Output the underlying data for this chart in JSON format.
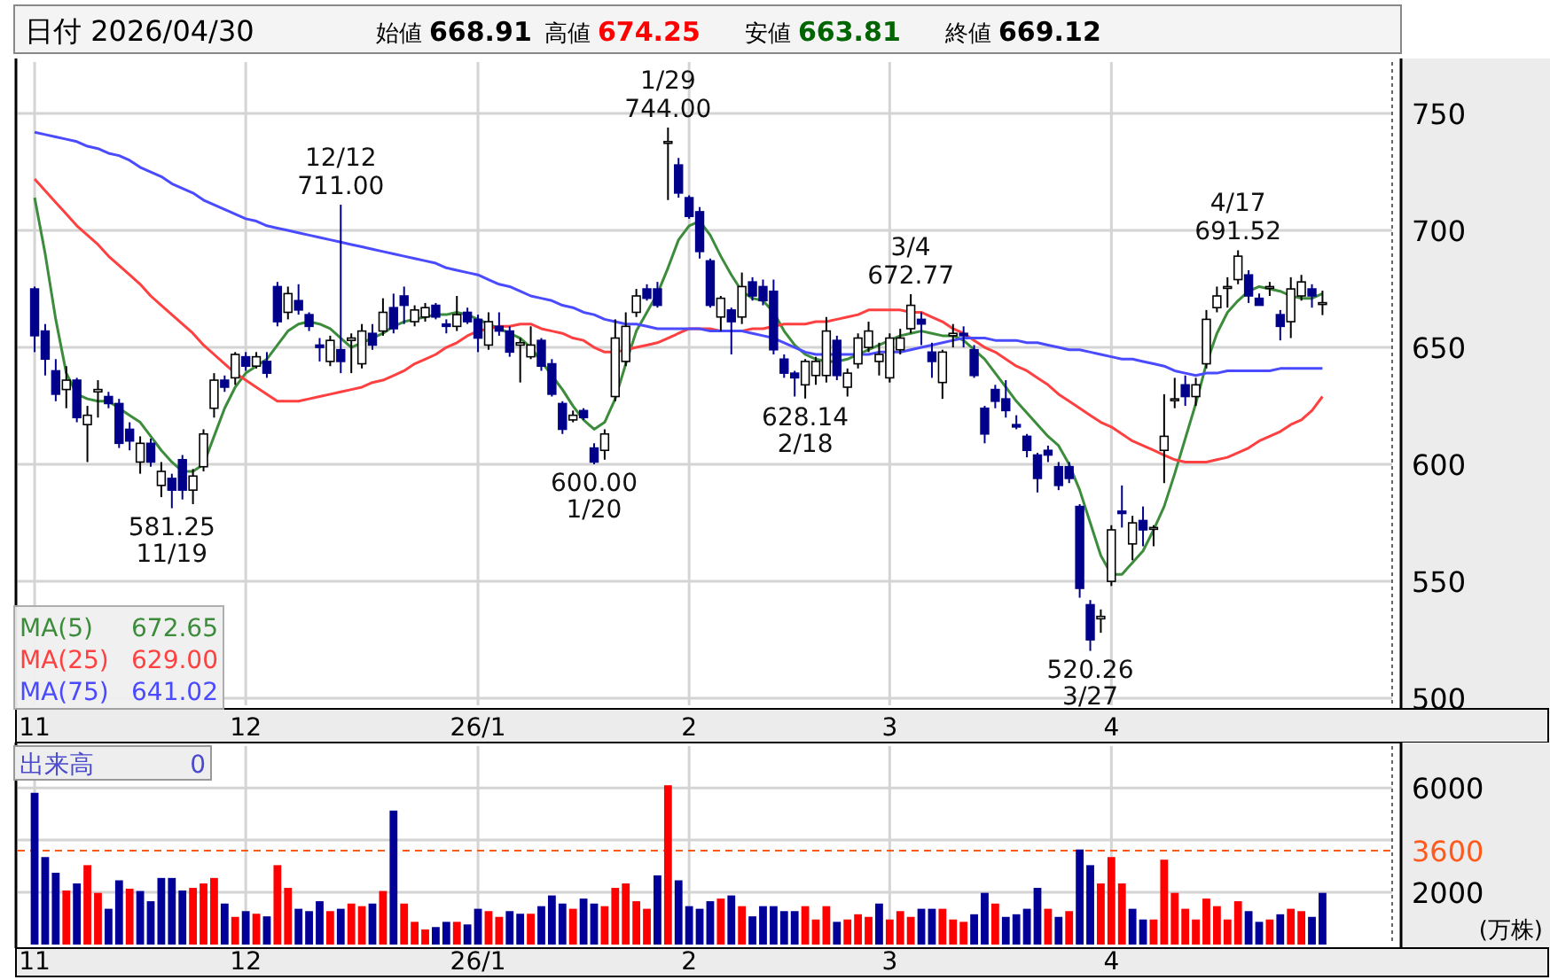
{
  "chart_data": [
    {
      "type": "candlestick",
      "title": "日付 2026/04/30",
      "colors": [
        "#00008b",
        "#00008b",
        "#00008b",
        "#ffffff",
        "#00008b",
        "#ffffff",
        "#ffffff",
        "#00008b",
        "#00008b",
        "#00008b",
        "#ffffff",
        "#00008b",
        "#ffffff",
        "#00008b",
        "#00008b",
        "#ffffff",
        "#ffffff",
        "#ffffff",
        "#00008b",
        "#ffffff",
        "#00008b",
        "#ffffff",
        "#00008b",
        "#00008b",
        "#ffffff",
        "#00008b",
        "#00008b",
        "#00008b",
        "#ffffff",
        "#00008b",
        "#ffffff",
        "#ffffff",
        "#00008b",
        "#ffffff",
        "#00008b",
        "#00008b",
        "#ffffff",
        "#ffffff",
        "#00008b",
        "#00008b",
        "#ffffff",
        "#00008b",
        "#00008b",
        "#ffffff",
        "#00008b",
        "#00008b",
        "#ffffff",
        "#ffffff",
        "#00008b",
        "#00008b",
        "#00008b",
        "#ffffff",
        "#00008b",
        "#00008b",
        "#ffffff",
        "#ffffff",
        "#ffffff",
        "#ffffff",
        "#00008b",
        "#00008b",
        "#ffffff",
        "#00008b",
        "#00008b",
        "#00008b",
        "#00008b",
        "#ffffff",
        "#00008b",
        "#ffffff",
        "#00008b",
        "#00008b",
        "#00008b",
        "#00008b",
        "#00008b",
        "#ffffff",
        "#ffffff",
        "#ffffff",
        "#00008b",
        "#ffffff",
        "#ffffff",
        "#ffffff",
        "#ffffff",
        "#ffffff",
        "#ffffff",
        "#ffffff",
        "#00008b",
        "#00008b",
        "#ffffff",
        "#ffffff",
        "#00008b",
        "#00008b",
        "#00008b",
        "#00008b",
        "#00008b",
        "#00008b",
        "#00008b",
        "#00008b",
        "#00008b",
        "#00008b",
        "#00008b",
        "#00008b",
        "#00008b",
        "#ffffff",
        "#ffffff",
        "#00008b",
        "#ffffff",
        "#00008b",
        "#ffffff",
        "#ffffff",
        "#ffffff",
        "#00008b",
        "#ffffff",
        "#ffffff",
        "#ffffff",
        "#ffffff",
        "#ffffff",
        "#00008b",
        "#00008b",
        "#ffffff",
        "#00008b",
        "#ffffff",
        "#ffffff",
        "#00008b",
        "#ffffff"
      ],
      "grid": true,
      "legend": "bottom left",
      "ylim": [
        497,
        772
      ],
      "yticks": [
        500,
        550,
        600,
        650,
        700,
        750
      ],
      "categories": [
        "11",
        null,
        null,
        null,
        null,
        null,
        null,
        null,
        null,
        null,
        null,
        null,
        null,
        null,
        null,
        null,
        null,
        null,
        null,
        null,
        "12",
        null,
        null,
        null,
        null,
        null,
        null,
        null,
        null,
        null,
        null,
        null,
        null,
        null,
        null,
        null,
        null,
        null,
        null,
        null,
        null,
        null,
        "26/1",
        null,
        null,
        null,
        null,
        null,
        null,
        null,
        null,
        null,
        null,
        null,
        null,
        null,
        null,
        null,
        null,
        null,
        null,
        null,
        "2",
        null,
        null,
        null,
        null,
        null,
        null,
        null,
        null,
        null,
        null,
        null,
        null,
        null,
        null,
        null,
        null,
        null,
        null,
        "3",
        null,
        null,
        null,
        null,
        null,
        null,
        null,
        null,
        null,
        null,
        null,
        null,
        null,
        null,
        null,
        null,
        null,
        null,
        null,
        null,
        "4",
        null,
        null,
        null,
        null,
        null,
        null,
        null,
        null,
        null,
        null,
        null,
        null,
        null,
        null,
        null,
        null,
        null,
        null,
        null,
        null
      ],
      "annotations": [
        "始値 668.91",
        "高値 674.25",
        "安値 663.81",
        "終値 669.12",
        "672.65",
        "629.00",
        "641.02",
        {
          "text": "581.25\n11/19",
          "y": 581.25
        },
        {
          "text": "12/12\n711.00",
          "y": 711
        },
        {
          "text": "600.00\n1/20",
          "y": 600
        },
        {
          "text": "1/29\n744.00",
          "y": 744
        },
        {
          "text": "628.14\n2/18",
          "y": 628.14
        },
        {
          "text": "3/4\n672.77",
          "y": 672.77
        },
        {
          "text": "520.26\n3/27",
          "y": 520.26
        },
        {
          "text": "4/17\n691.52",
          "y": 691.52
        }
      ],
      "ohlc": [
        [
          675,
          676,
          648,
          655
        ],
        [
          657,
          660,
          638,
          645
        ],
        [
          640,
          645,
          627,
          630
        ],
        [
          632,
          642,
          624,
          636
        ],
        [
          636,
          637,
          618,
          620
        ],
        [
          617,
          625,
          601,
          621
        ],
        [
          631,
          636,
          620,
          632
        ],
        [
          629,
          631,
          624,
          626
        ],
        [
          626,
          628,
          607,
          609
        ],
        [
          615,
          618,
          606,
          610
        ],
        [
          601,
          612,
          596,
          609
        ],
        [
          609,
          611,
          599,
          601
        ],
        [
          591,
          601,
          586,
          597
        ],
        [
          594,
          596,
          581.25,
          589
        ],
        [
          602,
          604,
          585,
          589
        ],
        [
          589,
          598,
          583,
          595
        ],
        [
          599,
          615,
          597,
          613
        ],
        [
          624,
          639,
          620,
          636
        ],
        [
          636,
          638,
          631,
          633
        ],
        [
          637,
          648,
          634,
          647
        ],
        [
          646,
          648,
          640,
          642
        ],
        [
          642,
          648,
          641,
          646
        ],
        [
          644,
          648,
          637,
          639
        ],
        [
          676,
          678,
          659,
          661
        ],
        [
          665,
          676,
          662,
          673
        ],
        [
          670,
          677,
          664,
          666
        ],
        [
          664,
          665,
          657,
          659
        ],
        [
          651,
          654,
          644,
          650
        ],
        [
          644,
          655,
          642,
          653
        ],
        [
          649,
          711,
          639,
          644
        ],
        [
          653,
          656,
          639,
          654
        ],
        [
          643,
          660,
          641,
          657
        ],
        [
          656,
          660,
          649,
          651
        ],
        [
          657,
          671,
          655,
          665
        ],
        [
          667,
          673,
          656,
          658
        ],
        [
          672,
          676,
          660,
          668
        ],
        [
          661,
          668,
          659,
          666
        ],
        [
          663,
          669,
          661,
          667
        ],
        [
          668,
          669,
          662,
          663
        ],
        [
          660,
          662,
          656,
          659
        ],
        [
          659,
          672,
          657,
          664
        ],
        [
          665,
          667,
          660,
          661
        ],
        [
          662,
          664,
          648,
          654
        ],
        [
          651,
          665,
          649,
          661
        ],
        [
          659,
          665,
          655,
          657
        ],
        [
          657,
          659,
          646,
          648
        ],
        [
          651,
          654,
          635,
          652
        ],
        [
          646,
          659,
          645,
          651
        ],
        [
          653,
          654,
          640,
          642
        ],
        [
          643,
          645,
          629,
          630
        ],
        [
          626,
          627,
          613,
          615
        ],
        [
          619,
          623,
          618,
          621
        ],
        [
          623,
          624,
          619,
          620
        ],
        [
          607,
          609,
          600,
          601
        ],
        [
          606,
          615,
          602,
          613
        ],
        [
          629,
          662,
          627,
          654
        ],
        [
          644,
          665,
          642,
          659
        ],
        [
          665,
          675,
          663,
          672
        ],
        [
          675,
          677,
          670,
          671
        ],
        [
          675,
          678,
          667,
          668
        ],
        [
          738,
          744,
          713,
          738
        ],
        [
          728,
          731,
          714,
          716
        ],
        [
          714,
          715,
          705,
          706
        ],
        [
          708,
          710,
          688,
          691
        ],
        [
          687,
          688,
          667,
          668
        ],
        [
          663,
          672,
          657,
          671
        ],
        [
          666,
          667,
          647,
          661
        ],
        [
          663,
          682,
          660,
          676
        ],
        [
          678,
          680,
          670,
          672
        ],
        [
          676,
          679,
          668,
          670
        ],
        [
          674,
          679,
          647,
          649
        ],
        [
          645,
          647,
          637,
          639
        ],
        [
          639,
          640,
          629,
          637
        ],
        [
          634,
          645,
          628.14,
          644
        ],
        [
          638,
          646,
          634,
          644
        ],
        [
          638,
          663,
          635,
          657
        ],
        [
          653,
          655,
          636,
          638
        ],
        [
          633,
          641,
          629,
          639
        ],
        [
          643,
          656,
          641,
          654
        ],
        [
          650,
          661,
          648,
          657
        ],
        [
          644,
          652,
          638,
          647
        ],
        [
          637,
          656,
          635,
          654
        ],
        [
          649,
          658,
          647,
          654
        ],
        [
          658,
          672.77,
          656,
          668
        ],
        [
          662,
          665,
          651,
          660
        ],
        [
          648,
          652,
          637,
          644
        ],
        [
          635,
          649,
          628,
          648
        ],
        [
          655,
          660,
          650,
          656
        ],
        [
          656,
          659,
          650,
          655
        ],
        [
          649,
          651,
          637,
          638
        ],
        [
          624,
          625,
          609,
          613
        ],
        [
          632,
          634,
          624,
          627
        ],
        [
          628,
          636,
          620,
          623
        ],
        [
          617,
          621,
          615,
          616
        ],
        [
          612,
          613,
          603,
          606
        ],
        [
          604,
          605,
          588,
          594
        ],
        [
          606,
          608,
          601,
          604
        ],
        [
          599,
          601,
          589,
          591
        ],
        [
          599,
          601,
          592,
          594
        ],
        [
          582,
          583,
          543,
          547
        ],
        [
          540,
          542,
          520.26,
          525
        ],
        [
          534,
          538,
          528,
          535
        ],
        [
          550,
          574,
          548,
          572
        ],
        [
          580,
          591,
          573,
          579
        ],
        [
          566,
          578,
          559,
          575
        ],
        [
          576,
          582,
          565,
          572
        ],
        [
          573,
          574,
          565,
          573
        ],
        [
          606,
          630,
          592,
          612
        ],
        [
          628,
          637,
          624,
          628
        ],
        [
          634,
          638,
          625,
          629
        ],
        [
          629,
          637,
          625,
          634
        ],
        [
          643,
          666,
          641,
          662
        ],
        [
          667,
          676,
          665,
          672
        ],
        [
          676,
          680,
          667,
          676
        ],
        [
          679,
          691.52,
          677,
          689
        ],
        [
          681,
          683,
          669,
          672
        ],
        [
          671,
          673,
          668,
          668
        ],
        [
          676,
          678,
          672,
          676
        ],
        [
          664,
          666,
          653,
          659
        ],
        [
          661,
          680,
          654,
          675
        ],
        [
          672,
          681,
          670,
          678
        ],
        [
          675,
          677,
          667,
          672
        ],
        [
          668.91,
          674.25,
          663.81,
          669.12
        ]
      ],
      "series": [
        {
          "type": "line",
          "name": "MA(5)",
          "color": "#3c8c3c",
          "values": [
            714,
            690,
            662,
            639,
            630,
            628,
            627,
            627,
            624,
            621,
            618,
            612,
            606,
            601,
            597,
            597,
            600,
            612,
            624,
            633,
            639,
            642,
            645,
            651,
            657,
            660,
            661,
            660,
            658,
            654,
            650,
            652,
            654,
            656,
            659,
            661,
            662,
            663,
            664,
            664,
            665,
            664,
            662,
            660,
            658,
            656,
            654,
            650,
            644,
            638,
            632,
            625,
            619,
            615,
            618,
            628,
            643,
            657,
            665,
            673,
            684,
            696,
            702,
            704,
            698,
            689,
            681,
            674,
            671,
            670,
            665,
            657,
            651,
            647,
            645,
            644,
            644,
            645,
            647,
            649,
            651,
            653,
            655,
            656,
            657,
            656,
            655,
            655,
            653,
            649,
            645,
            639,
            633,
            627,
            622,
            617,
            612,
            608,
            600,
            589,
            575,
            561,
            553,
            553,
            558,
            563,
            572,
            582,
            596,
            611,
            626,
            643,
            656,
            665,
            670,
            674,
            676,
            675,
            674,
            672,
            671,
            671,
            673
          ]
        },
        {
          "type": "line",
          "name": "MA(25)",
          "color": "#ff4040",
          "values": [
            722,
            717,
            712,
            707,
            702,
            698,
            694,
            689,
            685,
            681,
            677,
            672,
            668,
            664,
            660,
            656,
            651,
            647,
            643,
            639,
            636,
            633,
            630,
            627,
            627,
            627,
            628,
            629,
            630,
            631,
            632,
            633,
            635,
            636,
            638,
            640,
            643,
            645,
            647,
            650,
            652,
            655,
            657,
            658,
            659,
            659,
            660,
            660,
            658,
            657,
            656,
            654,
            653,
            650,
            648,
            648,
            649,
            650,
            651,
            652,
            654,
            656,
            658,
            658,
            658,
            657,
            657,
            657,
            658,
            658,
            659,
            660,
            660,
            660,
            661,
            661,
            662,
            663,
            664,
            666,
            666,
            666,
            666,
            665,
            665,
            663,
            661,
            658,
            656,
            653,
            650,
            648,
            645,
            642,
            640,
            637,
            634,
            630,
            627,
            624,
            621,
            618,
            616,
            613,
            610,
            608,
            606,
            604,
            602,
            601,
            601,
            601,
            602,
            603,
            605,
            607,
            610,
            612,
            614,
            617,
            619,
            623,
            629
          ]
        },
        {
          "type": "line",
          "name": "MA(75)",
          "color": "#4a4aff",
          "values": [
            742,
            741,
            740,
            739,
            738,
            736,
            735,
            733,
            732,
            730,
            727,
            725,
            723,
            720,
            718,
            716,
            713,
            711,
            709,
            707,
            705,
            704,
            702,
            701,
            700,
            699,
            698,
            697,
            696,
            695,
            694,
            693,
            692,
            691,
            690,
            689,
            688,
            687,
            686,
            684,
            683,
            682,
            681,
            679,
            677,
            676,
            674,
            672,
            671,
            670,
            668,
            667,
            665,
            664,
            662,
            661,
            660,
            660,
            659,
            658,
            658,
            658,
            658,
            658,
            657,
            657,
            657,
            657,
            656,
            655,
            654,
            652,
            650,
            648,
            647,
            647,
            647,
            647,
            647,
            647,
            648,
            648,
            648,
            649,
            650,
            651,
            652,
            653,
            654,
            654,
            654,
            653,
            653,
            653,
            652,
            652,
            651,
            650,
            649,
            649,
            648,
            647,
            646,
            645,
            645,
            644,
            643,
            642,
            640,
            639,
            638,
            639,
            639,
            640,
            640,
            640,
            640,
            640,
            641,
            641,
            641,
            641,
            641
          ]
        }
      ]
    },
    {
      "type": "bar",
      "title": "出来高",
      "annotations": [
        "0"
      ],
      "ylabel": "(万株)",
      "grid": true,
      "ylim": [
        0,
        7600
      ],
      "yticks": [
        2000,
        {
          "value": 4000,
          "label": null
        },
        6000
      ],
      "ref_lines": [
        {
          "axis": "y",
          "value": 3600,
          "label": "3600",
          "color": "#ff5a1e",
          "line_style": "dashed"
        }
      ],
      "categories": [
        "11",
        null,
        null,
        null,
        null,
        null,
        null,
        null,
        null,
        null,
        null,
        null,
        null,
        null,
        null,
        null,
        null,
        null,
        null,
        null,
        "12",
        null,
        null,
        null,
        null,
        null,
        null,
        null,
        null,
        null,
        null,
        null,
        null,
        null,
        null,
        null,
        null,
        null,
        null,
        null,
        null,
        null,
        "26/1",
        null,
        null,
        null,
        null,
        null,
        null,
        null,
        null,
        null,
        null,
        null,
        null,
        null,
        null,
        null,
        null,
        null,
        null,
        null,
        "2",
        null,
        null,
        null,
        null,
        null,
        null,
        null,
        null,
        null,
        null,
        null,
        null,
        null,
        null,
        null,
        null,
        null,
        null,
        "3",
        null,
        null,
        null,
        null,
        null,
        null,
        null,
        null,
        null,
        null,
        null,
        null,
        null,
        null,
        null,
        null,
        null,
        null,
        null,
        null,
        "4",
        null,
        null,
        null,
        null,
        null,
        null,
        null,
        null,
        null,
        null,
        null,
        null,
        null,
        null,
        null,
        null,
        null,
        null,
        null,
        null
      ],
      "values": [
        5810,
        3350,
        2750,
        2070,
        2340,
        3040,
        1980,
        1370,
        2460,
        2140,
        2050,
        1660,
        2550,
        2550,
        2070,
        2170,
        2340,
        2550,
        1570,
        1060,
        1280,
        1180,
        1080,
        3040,
        2170,
        1370,
        1280,
        1660,
        1280,
        1370,
        1570,
        1470,
        1570,
        2050,
        5130,
        1570,
        870,
        580,
        670,
        870,
        870,
        770,
        1370,
        1280,
        1060,
        1280,
        1180,
        1180,
        1470,
        1880,
        1570,
        1370,
        1760,
        1570,
        1470,
        2170,
        2340,
        1660,
        1370,
        2650,
        6100,
        2460,
        1470,
        1370,
        1660,
        1760,
        1880,
        1470,
        1080,
        1470,
        1470,
        1280,
        1280,
        1470,
        960,
        1470,
        870,
        960,
        1160,
        1060,
        1570,
        960,
        1280,
        1060,
        1370,
        1370,
        1370,
        960,
        870,
        1160,
        1980,
        1570,
        1060,
        1160,
        1370,
        2170,
        1370,
        1060,
        1280,
        3640,
        3040,
        2340,
        3350,
        2340,
        1370,
        960,
        960,
        3250,
        1980,
        1370,
        960,
        1760,
        1470,
        960,
        1660,
        1280,
        870,
        960,
        1160,
        1370,
        1280,
        1060,
        1980
      ],
      "colors": [
        "#000099",
        "#000099",
        "#000099",
        "#ff0000",
        "#000099",
        "#ff0000",
        "#ff0000",
        "#000099",
        "#000099",
        "#ff0000",
        "#000099",
        "#000099",
        "#000099",
        "#000099",
        "#000099",
        "#ff0000",
        "#ff0000",
        "#ff0000",
        "#000099",
        "#ff0000",
        "#000099",
        "#ff0000",
        "#000099",
        "#ff0000",
        "#ff0000",
        "#000099",
        "#000099",
        "#000099",
        "#ff0000",
        "#000099",
        "#ff0000",
        "#ff0000",
        "#000099",
        "#ff0000",
        "#000099",
        "#ff0000",
        "#ff0000",
        "#ff0000",
        "#000099",
        "#000099",
        "#ff0000",
        "#000099",
        "#000099",
        "#ff0000",
        "#ff0000",
        "#000099",
        "#000099",
        "#ff0000",
        "#000099",
        "#000099",
        "#000099",
        "#ff0000",
        "#000099",
        "#000099",
        "#ff0000",
        "#ff0000",
        "#ff0000",
        "#ff0000",
        "#ff0000",
        "#000099",
        "#ff0000",
        "#000099",
        "#000099",
        "#000099",
        "#000099",
        "#ff0000",
        "#000099",
        "#ff0000",
        "#000099",
        "#000099",
        "#000099",
        "#000099",
        "#000099",
        "#ff0000",
        "#ff0000",
        "#ff0000",
        "#000099",
        "#ff0000",
        "#ff0000",
        "#ff0000",
        "#000099",
        "#ff0000",
        "#ff0000",
        "#ff0000",
        "#000099",
        "#000099",
        "#ff0000",
        "#ff0000",
        "#ff0000",
        "#000099",
        "#000099",
        "#ff0000",
        "#000099",
        "#000099",
        "#000099",
        "#000099",
        "#ff0000",
        "#000099",
        "#ff0000",
        "#000099",
        "#000099",
        "#ff0000",
        "#ff0000",
        "#ff0000",
        "#000099",
        "#000099",
        "#ff0000",
        "#ff0000",
        "#ff0000",
        "#ff0000",
        "#ff0000",
        "#ff0000",
        "#ff0000",
        "#ff0000",
        "#ff0000",
        "#000099",
        "#000099",
        "#ff0000",
        "#000099",
        "#ff0000",
        "#ff0000",
        "#000099",
        "#000099"
      ]
    }
  ]
}
